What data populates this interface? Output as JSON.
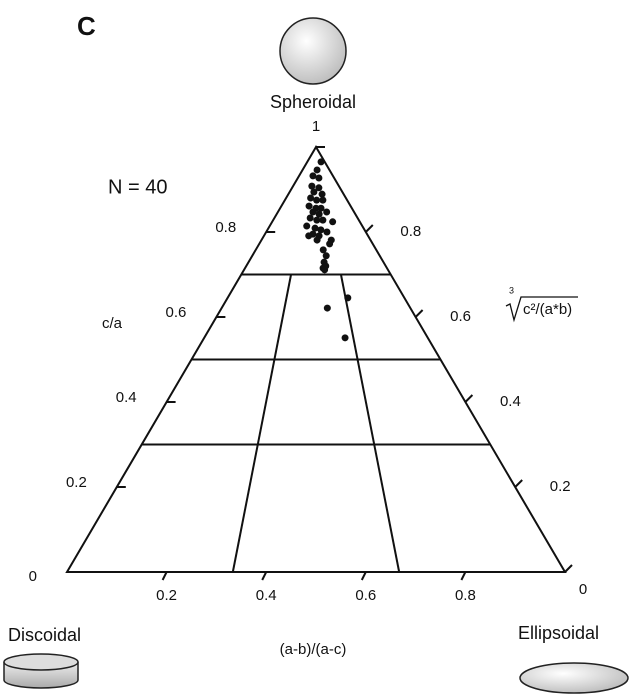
{
  "chart_data": {
    "type": "ternary",
    "panel_label": "C",
    "annotation": "N = 40",
    "vertex_labels": {
      "top": "Spheroidal",
      "left": "Discoidal",
      "right": "Ellipsoidal"
    },
    "left_axis_label": "c/a",
    "bottom_axis_label": "(a-b)/(a-c)",
    "right_axis_label": {
      "root_index": "3",
      "radicand": "c²/(a*b)"
    },
    "ylim": [
      0,
      1
    ],
    "yticks": [
      0,
      0.2,
      0.4,
      0.6,
      0.8,
      1
    ],
    "xlim": [
      0,
      1
    ],
    "xticks": [
      0.2,
      0.4,
      0.6,
      0.8
    ],
    "y2lim": [
      0,
      1
    ],
    "y2ticks": [
      0,
      0.2,
      0.4,
      0.6,
      0.8
    ],
    "field_boundaries": {
      "c_a": [
        0.7,
        0.5,
        0.3
      ],
      "fraction": [
        0.333,
        0.667
      ]
    },
    "color": "#111111",
    "series": [
      {
        "x": [
          0.79,
          0.54,
          0.41,
          0.58,
          0.41,
          0.56,
          0.46,
          0.61,
          0.41,
          0.51,
          0.61,
          0.4,
          0.5,
          0.57,
          0.46,
          0.64,
          0.54,
          0.43,
          0.51,
          0.58,
          0.69,
          0.4,
          0.49,
          0.55,
          0.47,
          0.61,
          0.53,
          0.43,
          0.64,
          0.51,
          0.62,
          0.56,
          0.58,
          0.56,
          0.55,
          0.57,
          0.68,
          0.56,
          0.63,
          0.56
        ],
        "values": [
          0.965,
          0.946,
          0.932,
          0.927,
          0.908,
          0.904,
          0.894,
          0.889,
          0.88,
          0.875,
          0.875,
          0.861,
          0.856,
          0.856,
          0.847,
          0.847,
          0.842,
          0.833,
          0.828,
          0.828,
          0.824,
          0.814,
          0.809,
          0.805,
          0.795,
          0.8,
          0.791,
          0.791,
          0.781,
          0.781,
          0.772,
          0.758,
          0.744,
          0.729,
          0.715,
          0.72,
          0.645,
          0.621,
          0.551,
          0.711
        ]
      }
    ]
  }
}
